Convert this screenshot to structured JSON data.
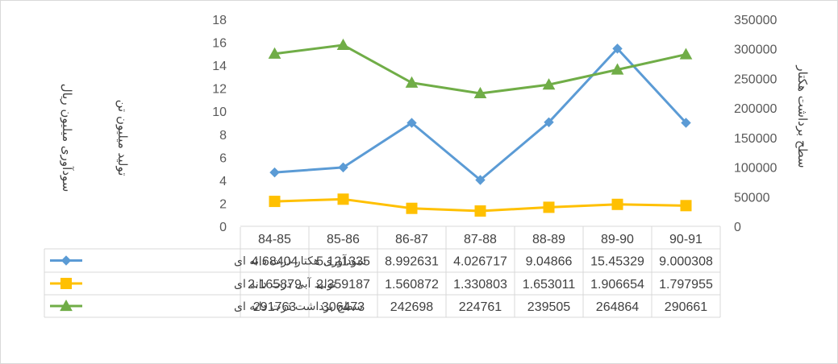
{
  "chart_data": {
    "type": "line",
    "categories": [
      "84-85",
      "85-86",
      "86-87",
      "87-88",
      "88-89",
      "89-90",
      "90-91"
    ],
    "y_left": {
      "ylim": [
        0,
        18
      ],
      "ticks": [
        "0",
        "2",
        "4",
        "6",
        "8",
        "10",
        "12",
        "14",
        "16",
        "18"
      ]
    },
    "y_right": {
      "ylim": [
        0,
        350000
      ],
      "ticks": [
        "0",
        "50000",
        "100000",
        "150000",
        "200000",
        "250000",
        "300000",
        "350000"
      ]
    },
    "ylabel_left_1": "سودآوری میلیون ریال",
    "ylabel_left_2": "تولید میلیون تن",
    "ylabel_right": "سطح برداشت هکتار",
    "legend_placement": "data-table",
    "gridlines": false,
    "series": [
      {
        "name": "سودآوری  هکتار ذرت دانه ای",
        "axis": "left",
        "color": "#5b9bd5",
        "marker": "diamond",
        "values": [
          4.68404,
          5.121335,
          8.992631,
          4.026717,
          9.04866,
          15.45329,
          9.000308
        ],
        "labels": [
          "4.68404",
          "5.121335",
          "8.992631",
          "4.026717",
          "9.04866",
          "15.45329",
          "9.000308"
        ]
      },
      {
        "name": "تولید آبی ذرت دانه ای",
        "axis": "left",
        "color": "#ffc000",
        "marker": "square",
        "values": [
          2.165879,
          2.359187,
          1.560872,
          1.330803,
          1.653011,
          1.906654,
          1.797955
        ],
        "labels": [
          "2.165879",
          "2.359187",
          "1.560872",
          "1.330803",
          "1.653011",
          "1.906654",
          "1.797955"
        ]
      },
      {
        "name": "سطح برداشت ذرت دانه ای",
        "axis": "right",
        "color": "#70ad47",
        "marker": "triangle",
        "values": [
          291763,
          306473,
          242698,
          224761,
          239505,
          264864,
          290661
        ],
        "labels": [
          "291763",
          "306473",
          "242698",
          "224761",
          "239505",
          "264864",
          "290661"
        ]
      }
    ]
  }
}
